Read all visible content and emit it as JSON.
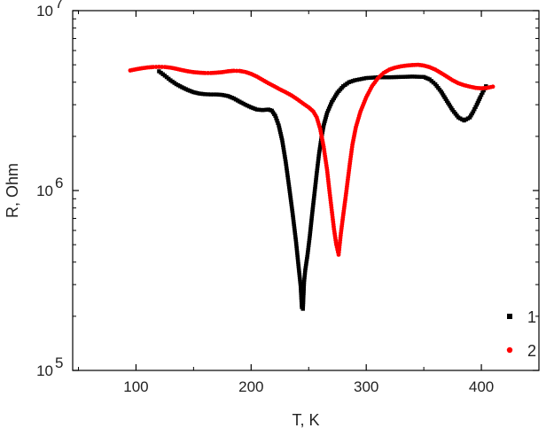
{
  "chart_data": {
    "type": "scatter",
    "title": "",
    "xlabel": "T, K",
    "ylabel": "R, Ohm",
    "xlim": [
      45,
      450
    ],
    "ylim": [
      100000,
      10000000
    ],
    "yscale": "log",
    "grid": false,
    "legend_position": "bottom-right",
    "x_ticks": [
      100,
      200,
      300,
      400
    ],
    "x_tick_labels": [
      "100",
      "200",
      "300",
      "400"
    ],
    "y_ticks": [
      100000,
      1000000,
      10000000
    ],
    "y_tick_labels": [
      {
        "base": "10",
        "exp": "5"
      },
      {
        "base": "10",
        "exp": "6"
      },
      {
        "base": "10",
        "exp": "7"
      }
    ],
    "series": [
      {
        "name": "1",
        "color": "#000000",
        "marker": "square",
        "points": [
          [
            120,
            4600000.0
          ],
          [
            125,
            4350000.0
          ],
          [
            130,
            4100000.0
          ],
          [
            135,
            3900000.0
          ],
          [
            140,
            3750000.0
          ],
          [
            145,
            3620000.0
          ],
          [
            150,
            3520000.0
          ],
          [
            155,
            3460000.0
          ],
          [
            160,
            3430000.0
          ],
          [
            165,
            3420000.0
          ],
          [
            170,
            3420000.0
          ],
          [
            175,
            3400000.0
          ],
          [
            180,
            3350000.0
          ],
          [
            185,
            3250000.0
          ],
          [
            190,
            3120000.0
          ],
          [
            195,
            3000000.0
          ],
          [
            200,
            2900000.0
          ],
          [
            205,
            2820000.0
          ],
          [
            210,
            2800000.0
          ],
          [
            215,
            2820000.0
          ],
          [
            218,
            2780000.0
          ],
          [
            221,
            2600000.0
          ],
          [
            224,
            2300000.0
          ],
          [
            227,
            1900000.0
          ],
          [
            230,
            1450000.0
          ],
          [
            233,
            1050000.0
          ],
          [
            236,
            750000.0
          ],
          [
            239,
            520000.0
          ],
          [
            241,
            390000.0
          ],
          [
            243,
            295000.0
          ],
          [
            244,
            225000.0
          ],
          [
            245,
            220000.0
          ],
          [
            246,
            310000.0
          ],
          [
            247,
            360000.0
          ],
          [
            249,
            440000.0
          ],
          [
            251,
            560000.0
          ],
          [
            253,
            740000.0
          ],
          [
            255,
            960000.0
          ],
          [
            257,
            1250000.0
          ],
          [
            259,
            1600000.0
          ],
          [
            261,
            1950000.0
          ],
          [
            263,
            2300000.0
          ],
          [
            266,
            2700000.0
          ],
          [
            270,
            3100000.0
          ],
          [
            275,
            3500000.0
          ],
          [
            280,
            3800000.0
          ],
          [
            285,
            4000000.0
          ],
          [
            290,
            4100000.0
          ],
          [
            300,
            4220000.0
          ],
          [
            310,
            4260000.0
          ],
          [
            320,
            4260000.0
          ],
          [
            330,
            4280000.0
          ],
          [
            340,
            4300000.0
          ],
          [
            350,
            4280000.0
          ],
          [
            355,
            4150000.0
          ],
          [
            360,
            3900000.0
          ],
          [
            365,
            3550000.0
          ],
          [
            370,
            3150000.0
          ],
          [
            375,
            2800000.0
          ],
          [
            380,
            2550000.0
          ],
          [
            385,
            2450000.0
          ],
          [
            390,
            2550000.0
          ],
          [
            393,
            2750000.0
          ],
          [
            396,
            3000000.0
          ],
          [
            399,
            3300000.0
          ],
          [
            402,
            3600000.0
          ],
          [
            404,
            3800000.0
          ]
        ]
      },
      {
        "name": "2",
        "color": "#ff0000",
        "marker": "circle",
        "points": [
          [
            95,
            4650000.0
          ],
          [
            100,
            4720000.0
          ],
          [
            105,
            4780000.0
          ],
          [
            110,
            4830000.0
          ],
          [
            115,
            4860000.0
          ],
          [
            120,
            4870000.0
          ],
          [
            125,
            4860000.0
          ],
          [
            130,
            4820000.0
          ],
          [
            135,
            4750000.0
          ],
          [
            140,
            4670000.0
          ],
          [
            145,
            4600000.0
          ],
          [
            150,
            4550000.0
          ],
          [
            155,
            4520000.0
          ],
          [
            160,
            4500000.0
          ],
          [
            165,
            4500000.0
          ],
          [
            170,
            4520000.0
          ],
          [
            175,
            4550000.0
          ],
          [
            180,
            4600000.0
          ],
          [
            185,
            4630000.0
          ],
          [
            190,
            4620000.0
          ],
          [
            195,
            4560000.0
          ],
          [
            200,
            4450000.0
          ],
          [
            205,
            4300000.0
          ],
          [
            210,
            4120000.0
          ],
          [
            215,
            3950000.0
          ],
          [
            220,
            3800000.0
          ],
          [
            225,
            3650000.0
          ],
          [
            230,
            3520000.0
          ],
          [
            235,
            3380000.0
          ],
          [
            240,
            3220000.0
          ],
          [
            245,
            3050000.0
          ],
          [
            250,
            2900000.0
          ],
          [
            254,
            2750000.0
          ],
          [
            257,
            2550000.0
          ],
          [
            260,
            2200000.0
          ],
          [
            263,
            1750000.0
          ],
          [
            266,
            1300000.0
          ],
          [
            268,
            1000000.0
          ],
          [
            270,
            780000.0
          ],
          [
            272,
            610000.0
          ],
          [
            274,
            500000.0
          ],
          [
            276,
            440000.0
          ],
          [
            278,
            580000.0
          ],
          [
            280,
            730000.0
          ],
          [
            282,
            910000.0
          ],
          [
            284,
            1150000.0
          ],
          [
            286,
            1450000.0
          ],
          [
            288,
            1800000.0
          ],
          [
            291,
            2250000.0
          ],
          [
            295,
            2750000.0
          ],
          [
            300,
            3300000.0
          ],
          [
            305,
            3800000.0
          ],
          [
            310,
            4200000.0
          ],
          [
            315,
            4500000.0
          ],
          [
            320,
            4700000.0
          ],
          [
            325,
            4820000.0
          ],
          [
            330,
            4900000.0
          ],
          [
            335,
            4950000.0
          ],
          [
            340,
            4980000.0
          ],
          [
            345,
            5000000.0
          ],
          [
            350,
            4950000.0
          ],
          [
            355,
            4850000.0
          ],
          [
            360,
            4700000.0
          ],
          [
            365,
            4500000.0
          ],
          [
            370,
            4300000.0
          ],
          [
            375,
            4100000.0
          ],
          [
            380,
            3950000.0
          ],
          [
            385,
            3850000.0
          ],
          [
            390,
            3780000.0
          ],
          [
            395,
            3720000.0
          ],
          [
            400,
            3700000.0
          ],
          [
            405,
            3720000.0
          ],
          [
            410,
            3780000.0
          ]
        ]
      }
    ]
  }
}
